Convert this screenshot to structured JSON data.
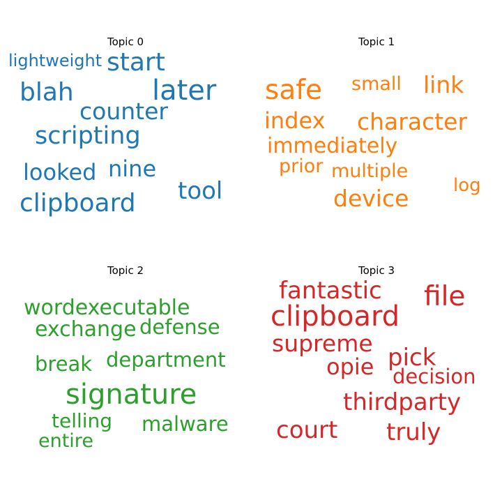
{
  "chart_data": {
    "type": "wordcloud",
    "topics": [
      {
        "title": "Topic 0",
        "color": "#1f77b4",
        "words": [
          "start",
          "lightweight",
          "later",
          "blah",
          "counter",
          "scripting",
          "looked",
          "nine",
          "tool",
          "clipboard"
        ],
        "weights": [
          36,
          24,
          40,
          36,
          33,
          35,
          32,
          32,
          34,
          36
        ]
      },
      {
        "title": "Topic 1",
        "color": "#ff7f0e",
        "words": [
          "safe",
          "small",
          "link",
          "index",
          "character",
          "immediately",
          "prior",
          "multiple",
          "log",
          "device"
        ],
        "weights": [
          39,
          27,
          33,
          32,
          33,
          30,
          27,
          27,
          26,
          33
        ]
      },
      {
        "title": "Topic 2",
        "color": "#2ca02c",
        "words": [
          "wordexecutable",
          "exchange",
          "defense",
          "break",
          "department",
          "signature",
          "telling",
          "malware",
          "entire"
        ],
        "weights": [
          30,
          30,
          29,
          29,
          29,
          40,
          28,
          29,
          27
        ]
      },
      {
        "title": "Topic 3",
        "color": "#d62728",
        "words": [
          "fantastic",
          "file",
          "clipboard",
          "supreme",
          "pick",
          "opie",
          "decision",
          "thirdparty",
          "court",
          "truly"
        ],
        "weights": [
          34,
          39,
          40,
          33,
          34,
          32,
          29,
          34,
          34,
          34
        ]
      }
    ]
  }
}
